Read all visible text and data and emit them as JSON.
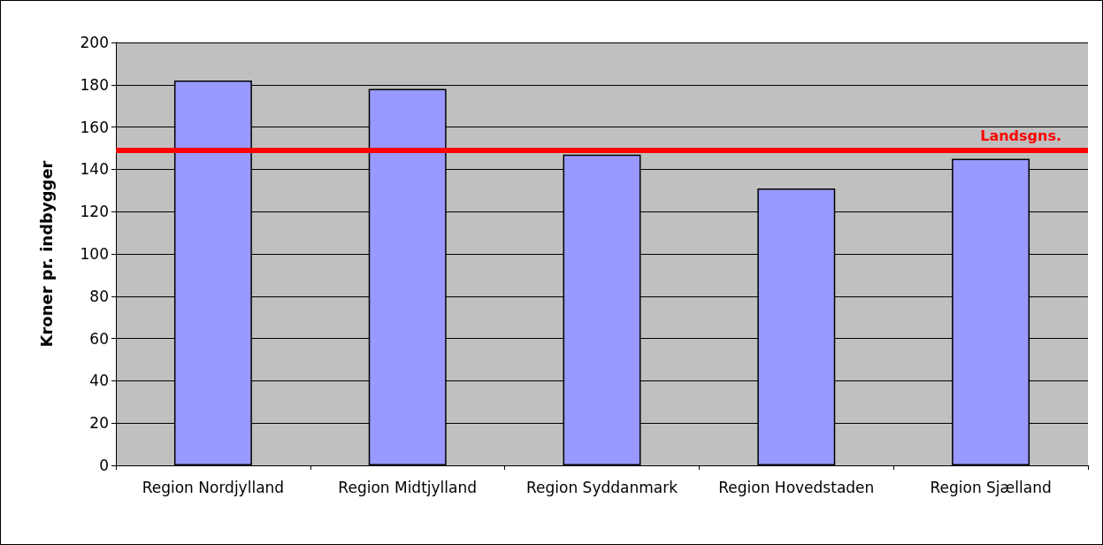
{
  "chart_data": {
    "type": "bar",
    "ylabel": "Kroner pr. indbygger",
    "categories": [
      "Region Nordjylland",
      "Region Midtjylland",
      "Region Syddanmark",
      "Region Hovedstaden",
      "Region Sjælland"
    ],
    "values": [
      182,
      178,
      147,
      131,
      145
    ],
    "color": "#9999ff",
    "ylim": [
      0,
      200
    ],
    "yticks": [
      0,
      20,
      40,
      60,
      80,
      100,
      120,
      140,
      160,
      180,
      200
    ],
    "grid": "y",
    "ref_lines": [
      {
        "axis": "y",
        "value": 149,
        "label": "Landsgns.",
        "color": "#ff0000"
      }
    ]
  }
}
